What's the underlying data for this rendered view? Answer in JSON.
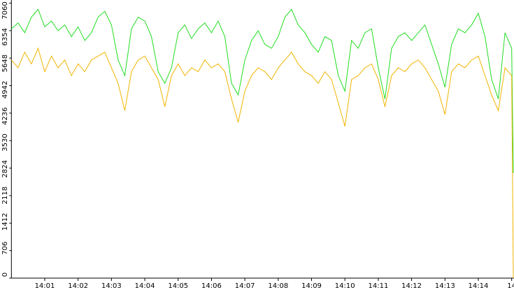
{
  "chart_data": {
    "type": "line",
    "x": [
      0,
      0.2,
      0.4,
      0.6,
      0.8,
      1,
      1.2,
      1.4,
      1.6,
      1.8,
      2,
      2.2,
      2.4,
      2.6,
      2.8,
      3,
      3.2,
      3.4,
      3.6,
      3.8,
      4,
      4.2,
      4.4,
      4.6,
      4.8,
      5,
      5.2,
      5.4,
      5.6,
      5.8,
      6,
      6.2,
      6.4,
      6.6,
      6.8,
      7,
      7.2,
      7.4,
      7.6,
      7.8,
      8,
      8.2,
      8.4,
      8.6,
      8.8,
      9,
      9.2,
      9.4,
      9.6,
      9.8,
      10,
      10.2,
      10.4,
      10.6,
      10.8,
      11,
      11.2,
      11.4,
      11.6,
      11.8,
      12,
      12.2,
      12.4,
      12.6,
      12.8,
      13,
      13.2,
      13.4,
      13.6,
      13.8,
      14,
      14.2,
      14.4,
      14.6,
      14.8,
      15,
      15.05
    ],
    "series": [
      {
        "color": "#22dd22",
        "values": [
          6400,
          6550,
          6300,
          6700,
          6900,
          6450,
          6600,
          6350,
          6500,
          6200,
          6450,
          6100,
          6300,
          6700,
          6850,
          6500,
          5600,
          5200,
          6400,
          6700,
          6600,
          6200,
          5300,
          5000,
          5400,
          6300,
          6500,
          6150,
          6400,
          6550,
          6300,
          6600,
          6200,
          5000,
          4700,
          5600,
          6100,
          6350,
          6000,
          5900,
          6200,
          6700,
          6900,
          6500,
          6300,
          6000,
          5800,
          6200,
          6100,
          5200,
          4800,
          6100,
          5900,
          6300,
          6400,
          5400,
          4600,
          5900,
          6200,
          6300,
          6100,
          6300,
          6500,
          6000,
          5500,
          4900,
          6000,
          6400,
          6300,
          6500,
          6800,
          6200,
          5100,
          4600,
          6300,
          5900,
          2700
        ]
      },
      {
        "color": "#f0b400",
        "values": [
          5600,
          5400,
          5800,
          5500,
          5900,
          5300,
          5700,
          5400,
          5600,
          5200,
          5500,
          5300,
          5600,
          5700,
          5800,
          5400,
          5000,
          4300,
          5300,
          5600,
          5700,
          5400,
          5100,
          4400,
          5200,
          5500,
          5200,
          5400,
          5300,
          5600,
          5400,
          5500,
          5300,
          4600,
          4000,
          4800,
          5200,
          5400,
          5300,
          5100,
          5400,
          5600,
          5800,
          5500,
          5300,
          5200,
          5000,
          5300,
          5100,
          4500,
          3900,
          5100,
          5200,
          5400,
          5500,
          5100,
          4400,
          5200,
          5400,
          5300,
          5500,
          5600,
          5400,
          5100,
          4800,
          4200,
          5300,
          5500,
          5400,
          5600,
          5700,
          5200,
          4700,
          4300,
          5400,
          5200,
          0
        ]
      }
    ],
    "xlim": [
      0,
      15.07
    ],
    "xticks": [
      {
        "value": 1,
        "label": "14:01"
      },
      {
        "value": 2,
        "label": "14:02"
      },
      {
        "value": 3,
        "label": "14:03"
      },
      {
        "value": 4,
        "label": "14:04"
      },
      {
        "value": 5,
        "label": "14:05"
      },
      {
        "value": 6,
        "label": "14:06"
      },
      {
        "value": 7,
        "label": "14:07"
      },
      {
        "value": 8,
        "label": "14:08"
      },
      {
        "value": 9,
        "label": "14:09"
      },
      {
        "value": 10,
        "label": "14:10"
      },
      {
        "value": 11,
        "label": "14:11"
      },
      {
        "value": 12,
        "label": "14:12"
      },
      {
        "value": 13,
        "label": "14:13"
      },
      {
        "value": 14,
        "label": "14:14"
      },
      {
        "value": 15,
        "label": "14"
      }
    ],
    "ylim": [
      0,
      7140
    ],
    "yticks": [
      0,
      706,
      1412,
      2118,
      2824,
      3530,
      4236,
      4942,
      5648,
      6354,
      7060
    ]
  }
}
